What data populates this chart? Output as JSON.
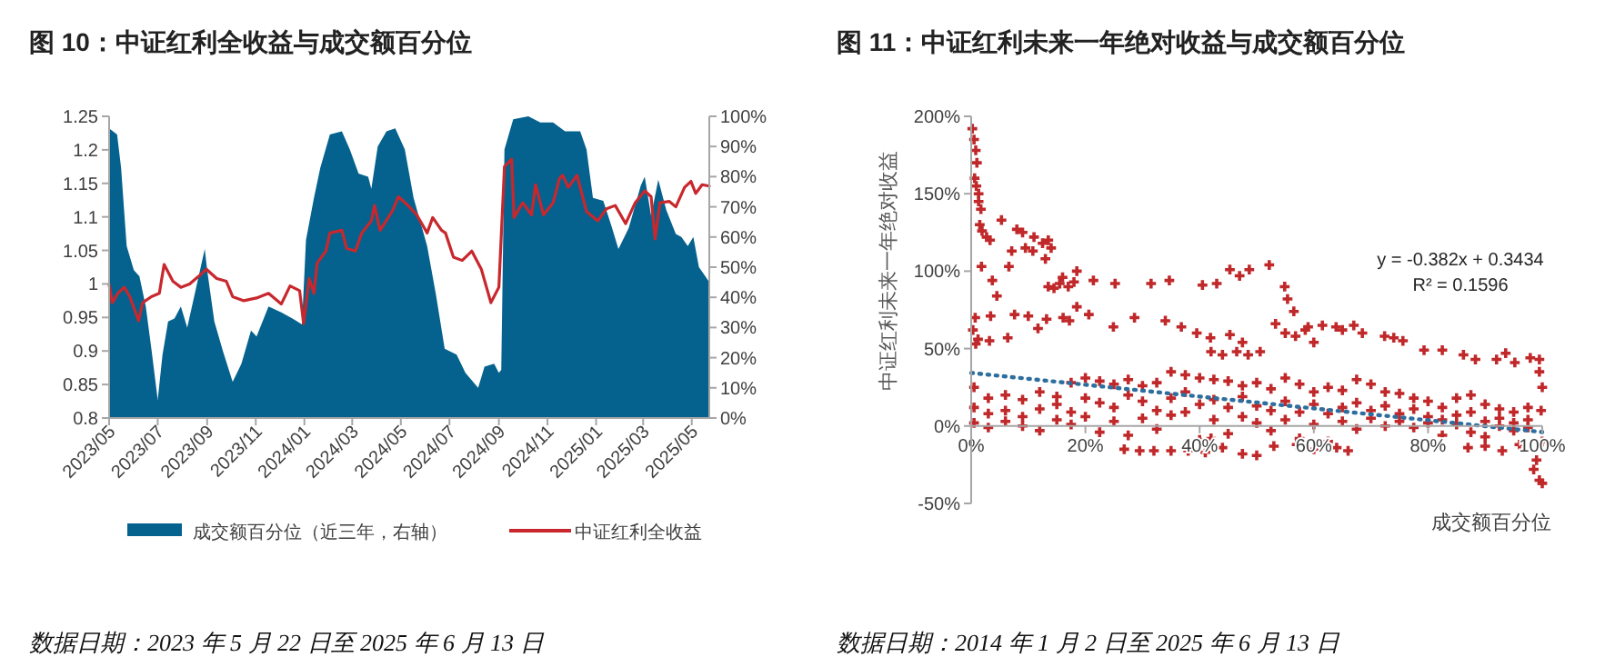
{
  "chart_data": [
    {
      "type": "line",
      "title": "图 10：中证红利全收益与成交额百分位",
      "xlim": [
        "2023-05-22",
        "2025-06-13"
      ],
      "xticks": [
        {
          "value": "2023-05-22",
          "label": "2023/05"
        },
        {
          "value": "2023-07-22",
          "label": "2023/07"
        },
        {
          "value": "2023-09-22",
          "label": "2023/09"
        },
        {
          "value": "2023-11-22",
          "label": "2023/11"
        },
        {
          "value": "2024-01-22",
          "label": "2024/01"
        },
        {
          "value": "2024-03-22",
          "label": "2024/03"
        },
        {
          "value": "2024-05-22",
          "label": "2024/05"
        },
        {
          "value": "2024-07-22",
          "label": "2024/07"
        },
        {
          "value": "2024-09-22",
          "label": "2024/09"
        },
        {
          "value": "2024-11-22",
          "label": "2024/11"
        },
        {
          "value": "2025-01-22",
          "label": "2025/01"
        },
        {
          "value": "2025-03-22",
          "label": "2025/03"
        },
        {
          "value": "2025-05-22",
          "label": "2025/05"
        }
      ],
      "ylim": [
        0.8,
        1.25
      ],
      "yticks": [
        0.8,
        0.85,
        0.9,
        0.95,
        1,
        1.05,
        1.1,
        1.15,
        1.2,
        1.25
      ],
      "y2lim": [
        0,
        100
      ],
      "y2ticks": [
        {
          "value": 0,
          "label": "0%"
        },
        {
          "value": 10,
          "label": "10%"
        },
        {
          "value": 20,
          "label": "20%"
        },
        {
          "value": 30,
          "label": "30%"
        },
        {
          "value": 40,
          "label": "40%"
        },
        {
          "value": 50,
          "label": "50%"
        },
        {
          "value": 60,
          "label": "60%"
        },
        {
          "value": 70,
          "label": "70%"
        },
        {
          "value": 80,
          "label": "80%"
        },
        {
          "value": 90,
          "label": "90%"
        },
        {
          "value": 100,
          "label": "100%"
        }
      ],
      "legend": "bottom",
      "annotations": [
        "数据日期：2023 年 5 月 22 日至 2025 年 6 月 13 日"
      ],
      "series": [
        {
          "type": "area",
          "axis": "y2",
          "name": "成交额百分位（近三年，右轴）",
          "color": "#05628e",
          "x": [
            "2023-05-22",
            "2023-06-01",
            "2023-06-06",
            "2023-06-13",
            "2023-06-22",
            "2023-06-29",
            "2023-07-07",
            "2023-07-14",
            "2023-07-22",
            "2023-07-28",
            "2023-08-04",
            "2023-08-12",
            "2023-08-20",
            "2023-08-28",
            "2023-09-08",
            "2023-09-19",
            "2023-09-22",
            "2023-10-01",
            "2023-10-12",
            "2023-10-24",
            "2023-11-04",
            "2023-11-16",
            "2023-11-23",
            "2023-12-08",
            "2023-12-24",
            "2024-01-07",
            "2024-01-19",
            "2024-01-24",
            "2024-02-03",
            "2024-02-11",
            "2024-02-23",
            "2024-03-09",
            "2024-03-19",
            "2024-03-30",
            "2024-04-11",
            "2024-04-15",
            "2024-04-23",
            "2024-05-04",
            "2024-05-15",
            "2024-05-27",
            "2024-06-07",
            "2024-06-24",
            "2024-07-05",
            "2024-07-16",
            "2024-07-31",
            "2024-08-11",
            "2024-08-27",
            "2024-09-04",
            "2024-09-16",
            "2024-09-22",
            "2024-09-25",
            "2024-09-29",
            "2024-10-10",
            "2024-10-29",
            "2024-11-13",
            "2024-11-29",
            "2024-12-14",
            "2025-01-02",
            "2025-01-10",
            "2025-01-18",
            "2025-01-31",
            "2025-02-11",
            "2025-02-19",
            "2025-03-04",
            "2025-03-19",
            "2025-03-24",
            "2025-04-01",
            "2025-04-10",
            "2025-04-20",
            "2025-05-02",
            "2025-05-09",
            "2025-05-17",
            "2025-05-24",
            "2025-05-31",
            "2025-06-08",
            "2025-06-13"
          ],
          "values": [
            96,
            94,
            83,
            57,
            49,
            47,
            37,
            23,
            6,
            21,
            32,
            33,
            37,
            30,
            43,
            56,
            49,
            32,
            22,
            12,
            18,
            29,
            27,
            37,
            35,
            33,
            31,
            59,
            73,
            83,
            94,
            95,
            89,
            81,
            80,
            76,
            90,
            95,
            96,
            89,
            73,
            57,
            41,
            23,
            21,
            15,
            10,
            17,
            18,
            15,
            16,
            89,
            99,
            100,
            98,
            98,
            95,
            95,
            89,
            73,
            72,
            63,
            56,
            63,
            77,
            80,
            67,
            79,
            69,
            61,
            60,
            57,
            60,
            50,
            47,
            45
          ]
        },
        {
          "name": "中证红利全收益",
          "color": "#c8282d",
          "x": [
            "2023-05-22",
            "2023-05-26",
            "2023-06-02",
            "2023-06-10",
            "2023-06-17",
            "2023-06-28",
            "2023-07-03",
            "2023-07-14",
            "2023-07-24",
            "2023-07-30",
            "2023-08-10",
            "2023-08-20",
            "2023-08-31",
            "2023-09-11",
            "2023-09-21",
            "2023-10-04",
            "2023-10-16",
            "2023-10-24",
            "2023-11-07",
            "2023-11-23",
            "2023-12-08",
            "2023-12-24",
            "2024-01-04",
            "2024-01-16",
            "2024-01-21",
            "2024-01-28",
            "2024-02-03",
            "2024-02-07",
            "2024-02-18",
            "2024-02-23",
            "2024-03-09",
            "2024-03-15",
            "2024-03-26",
            "2024-04-03",
            "2024-04-15",
            "2024-04-19",
            "2024-04-26",
            "2024-05-11",
            "2024-05-19",
            "2024-05-31",
            "2024-06-11",
            "2024-06-24",
            "2024-07-01",
            "2024-07-12",
            "2024-07-17",
            "2024-07-27",
            "2024-08-07",
            "2024-08-19",
            "2024-08-31",
            "2024-09-12",
            "2024-09-22",
            "2024-09-29",
            "2024-10-08",
            "2024-10-11",
            "2024-10-22",
            "2024-11-02",
            "2024-11-07",
            "2024-11-17",
            "2024-11-29",
            "2024-12-07",
            "2024-12-11",
            "2024-12-18",
            "2024-12-29",
            "2025-01-10",
            "2025-01-24",
            "2025-02-04",
            "2025-02-15",
            "2025-02-28",
            "2025-03-12",
            "2025-03-24",
            "2025-04-01",
            "2025-04-06",
            "2025-04-12",
            "2025-04-24",
            "2025-05-02",
            "2025-05-13",
            "2025-05-21",
            "2025-05-27",
            "2025-06-04",
            "2025-06-13"
          ],
          "values": [
            0.999,
            0.972,
            0.986,
            0.995,
            0.981,
            0.945,
            0.972,
            0.981,
            0.986,
            1.029,
            1.004,
            0.995,
            1.0,
            1.011,
            1.022,
            1.008,
            1.004,
            0.981,
            0.975,
            0.979,
            0.986,
            0.97,
            0.997,
            0.99,
            0.941,
            1.008,
            0.986,
            1.031,
            1.049,
            1.076,
            1.08,
            1.053,
            1.049,
            1.076,
            1.094,
            1.117,
            1.08,
            1.108,
            1.13,
            1.117,
            1.103,
            1.076,
            1.099,
            1.08,
            1.076,
            1.04,
            1.035,
            1.049,
            1.022,
            0.972,
            0.995,
            1.175,
            1.186,
            1.099,
            1.121,
            1.103,
            1.148,
            1.103,
            1.121,
            1.157,
            1.162,
            1.144,
            1.162,
            1.108,
            1.094,
            1.112,
            1.117,
            1.09,
            1.121,
            1.139,
            1.13,
            1.067,
            1.121,
            1.123,
            1.115,
            1.144,
            1.153,
            1.135,
            1.148,
            1.146
          ]
        }
      ]
    },
    {
      "type": "scatter",
      "title": "图 11：中证红利未来一年绝对收益与成交额百分位",
      "xlabel": "成交额百分位",
      "ylabel": "中证红利未来一年绝对收益",
      "xlim": [
        0,
        100
      ],
      "xticks": [
        {
          "value": 0,
          "label": "0%"
        },
        {
          "value": 20,
          "label": "20%"
        },
        {
          "value": 40,
          "label": "40%"
        },
        {
          "value": 60,
          "label": "60%"
        },
        {
          "value": 80,
          "label": "80%"
        },
        {
          "value": 100,
          "label": "100%"
        }
      ],
      "ylim": [
        -50,
        200
      ],
      "yticks": [
        {
          "value": -50,
          "label": "-50%"
        },
        {
          "value": 0,
          "label": "0%"
        },
        {
          "value": 50,
          "label": "50%"
        },
        {
          "value": 100,
          "label": "100%"
        },
        {
          "value": 150,
          "label": "150%"
        },
        {
          "value": 200,
          "label": "200%"
        }
      ],
      "annotations": [
        "y = -0.382x + 0.3434",
        "R² = 0.1596",
        "数据日期：2014 年 1 月 2 日至 2025 年 6 月 13 日"
      ],
      "series": [
        {
          "marker": "cross",
          "color": "#c0282a",
          "x": [
            0.2,
            0.5,
            0.8,
            1,
            0.6,
            0.9,
            1.3,
            1.3,
            1.7,
            1.5,
            1.9,
            2.7,
            3.3,
            1.8,
            4.5,
            3.7,
            5.3,
            6.6,
            7.1,
            8,
            9,
            9.5,
            10.8,
            11,
            12.5,
            13.5,
            14,
            13,
            13.5,
            14.5,
            15.5,
            17,
            18,
            16,
            18.5,
            21.4,
            25.2,
            31.5,
            34.7,
            40.5,
            43,
            45.3,
            47,
            48.7,
            52.2,
            54.9,
            55.4,
            56.5,
            0.3,
            0.8,
            1.2,
            0.7,
            3.2,
            3.4,
            6.4,
            7.6,
            10,
            11.7,
            13.2,
            16.1,
            17.2,
            18.5,
            20.6,
            24.9,
            28.6,
            34,
            36.8,
            39.5,
            41.9,
            45.3,
            47.5,
            42,
            44,
            46.5,
            48.5,
            50.6,
            53.3,
            55,
            56.8,
            58.5,
            60,
            59,
            61.5,
            63.9,
            65,
            67,
            68.5,
            72.4,
            74,
            75.6,
            79.3,
            82.5,
            86.2,
            88.3,
            92,
            93.6,
            95.2,
            97.9,
            99.5,
            99.5,
            100,
            99.8,
            100,
            99,
            98.5,
            99.5,
            100,
            26.8,
            29.5,
            32,
            35,
            38,
            41,
            44,
            47.5,
            50,
            53,
            57,
            60,
            64,
            66,
            87,
            90,
            93,
            96,
            42,
            0.5,
            0.5,
            0.5,
            3,
            3,
            3,
            6,
            6,
            6,
            9,
            9,
            9,
            12,
            12,
            12,
            15,
            15,
            15,
            17.5,
            17.5,
            17.5,
            20,
            20,
            20,
            22.5,
            22.5,
            22.5,
            25,
            25,
            25,
            27.5,
            27.5,
            27.5,
            30,
            30,
            30,
            32.5,
            32.5,
            32.5,
            35,
            35,
            35,
            37.5,
            37.5,
            37.5,
            40,
            40,
            40,
            42.5,
            42.5,
            42.5,
            45,
            45,
            45,
            47.5,
            47.5,
            47.5,
            50,
            50,
            50,
            52.5,
            52.5,
            52.5,
            55,
            55,
            55,
            57.5,
            57.5,
            57.5,
            60,
            60,
            60,
            62.5,
            62.5,
            62.5,
            65,
            65,
            65,
            67.5,
            67.5,
            67.5,
            70,
            70,
            70,
            72.5,
            72.5,
            72.5,
            75,
            75,
            75,
            77.5,
            77.5,
            77.5,
            80,
            80,
            80,
            82.5,
            82.5,
            82.5,
            85,
            85,
            85,
            87.5,
            87.5,
            87.5,
            90,
            90,
            90,
            92.5,
            92.5,
            92.5,
            95,
            95,
            95,
            97.5,
            97.5,
            97.5
          ],
          "values": [
            192,
            185,
            178,
            170,
            160,
            155,
            150,
            145,
            140,
            130,
            126,
            122,
            120,
            103,
            84,
            94,
            133,
            103,
            113,
            127,
            125,
            115,
            113,
            122,
            118,
            120,
            115,
            108,
            90,
            89,
            92,
            90,
            93,
            96,
            100,
            94,
            92,
            92,
            94,
            91,
            92,
            101,
            97,
            101,
            104,
            90,
            82,
            74,
            62,
            53,
            56,
            70,
            55,
            71,
            57,
            72,
            71,
            63,
            69,
            70,
            68,
            77,
            72,
            64,
            70,
            68,
            64,
            60,
            57,
            59,
            54,
            48,
            46,
            48,
            46,
            48,
            66,
            60,
            58,
            62,
            54,
            64,
            65,
            64,
            62,
            65,
            60,
            58,
            57,
            55,
            49,
            49,
            46,
            43,
            43,
            47,
            41,
            44,
            43,
            35,
            25,
            10,
            -10,
            -22,
            -28,
            -35,
            -37,
            -15,
            -16,
            -16,
            -16,
            -16,
            -17,
            -14,
            -18,
            -19,
            -13,
            -12,
            -15,
            -14,
            -16,
            -14,
            -13,
            -16,
            -12,
            -8,
            25,
            12,
            2,
            18,
            8,
            -1,
            20,
            10,
            3,
            17,
            6,
            0,
            22,
            11,
            -3,
            19,
            14,
            4,
            28,
            9,
            1,
            31,
            18,
            6,
            29,
            15,
            -4,
            27,
            12,
            3,
            30,
            20,
            -6,
            26,
            16,
            5,
            28,
            10,
            -2,
            35,
            18,
            7,
            33,
            22,
            9,
            31,
            14,
            -9,
            30,
            17,
            4,
            29,
            12,
            -5,
            26,
            19,
            6,
            28,
            13,
            2,
            24,
            10,
            -3,
            31,
            16,
            4,
            27,
            9,
            -8,
            22,
            14,
            1,
            25,
            8,
            -10,
            23,
            12,
            3,
            30,
            15,
            -2,
            27,
            10,
            5,
            22,
            13,
            0,
            21,
            8,
            3,
            18,
            11,
            -1,
            16,
            6,
            2,
            12,
            4,
            -6,
            18,
            7,
            1,
            20,
            9,
            -4,
            14,
            3,
            -7,
            11,
            5,
            0,
            9,
            2,
            -3,
            12,
            4,
            -1
          ]
        },
        {
          "type": "line",
          "color": "#2e6e9e",
          "line_style": "dotted",
          "x": [
            0,
            100
          ],
          "values": [
            34.3,
            -3.9
          ]
        }
      ]
    }
  ]
}
